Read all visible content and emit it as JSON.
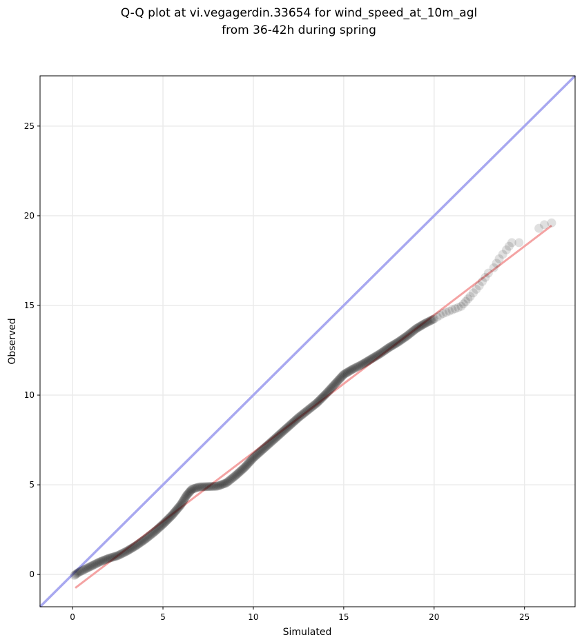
{
  "chart_data": {
    "type": "scatter",
    "title_line1": "Q-Q plot at vi.vegagerdin.33654 for wind_speed_at_10m_agl",
    "title_line2": "from 36-42h during spring",
    "xlabel": "Simulated",
    "ylabel": "Observed",
    "xlim": [
      -1.8,
      27.8
    ],
    "ylim": [
      -1.8,
      27.8
    ],
    "xticks": [
      0,
      5,
      10,
      15,
      20,
      25
    ],
    "yticks": [
      0,
      5,
      10,
      15,
      20,
      25
    ],
    "xtick_labels": [
      "0",
      "5",
      "10",
      "15",
      "20",
      "25"
    ],
    "ytick_labels": [
      "0",
      "5",
      "10",
      "15",
      "20",
      "25"
    ],
    "grid": true,
    "reference_line": {
      "name": "1:1",
      "color": "#a8a8f0",
      "x": [
        -1.8,
        27.8
      ],
      "y": [
        -1.8,
        27.8
      ]
    },
    "fit_line": {
      "color": "#f4a3a3",
      "x": [
        0.15,
        26.5
      ],
      "y": [
        -0.75,
        19.45
      ]
    },
    "series": [
      {
        "marker_color": "#000000",
        "curve": [
          [
            0.1,
            -0.05
          ],
          [
            0.3,
            0.1
          ],
          [
            0.6,
            0.25
          ],
          [
            1.0,
            0.45
          ],
          [
            1.5,
            0.7
          ],
          [
            2.0,
            0.9
          ],
          [
            2.5,
            1.05
          ],
          [
            3.0,
            1.3
          ],
          [
            3.5,
            1.6
          ],
          [
            4.0,
            1.95
          ],
          [
            4.5,
            2.35
          ],
          [
            5.0,
            2.8
          ],
          [
            5.5,
            3.3
          ],
          [
            6.0,
            3.9
          ],
          [
            6.3,
            4.4
          ],
          [
            6.6,
            4.75
          ],
          [
            7.0,
            4.88
          ],
          [
            7.5,
            4.9
          ],
          [
            8.0,
            4.92
          ],
          [
            8.5,
            5.1
          ],
          [
            9.0,
            5.5
          ],
          [
            9.5,
            5.95
          ],
          [
            10.0,
            6.5
          ],
          [
            10.5,
            6.95
          ],
          [
            11.0,
            7.4
          ],
          [
            11.5,
            7.85
          ],
          [
            12.0,
            8.3
          ],
          [
            12.5,
            8.75
          ],
          [
            13.0,
            9.15
          ],
          [
            13.5,
            9.55
          ],
          [
            14.0,
            10.05
          ],
          [
            14.5,
            10.6
          ],
          [
            15.0,
            11.15
          ],
          [
            15.5,
            11.45
          ],
          [
            16.0,
            11.7
          ],
          [
            16.5,
            12.0
          ],
          [
            17.0,
            12.3
          ],
          [
            17.5,
            12.65
          ],
          [
            18.0,
            12.95
          ],
          [
            18.5,
            13.3
          ],
          [
            19.0,
            13.7
          ],
          [
            19.5,
            14.0
          ],
          [
            20.0,
            14.25
          ],
          [
            20.5,
            14.55
          ],
          [
            21.0,
            14.75
          ],
          [
            21.5,
            14.95
          ],
          [
            22.0,
            15.5
          ],
          [
            22.5,
            16.1
          ],
          [
            23.0,
            16.8
          ],
          [
            23.3,
            17.1
          ],
          [
            23.6,
            17.6
          ],
          [
            24.0,
            18.1
          ],
          [
            24.3,
            18.5
          ]
        ],
        "outliers": [
          [
            24.7,
            18.5
          ],
          [
            25.8,
            19.3
          ],
          [
            26.1,
            19.5
          ],
          [
            26.5,
            19.6
          ]
        ]
      }
    ]
  }
}
